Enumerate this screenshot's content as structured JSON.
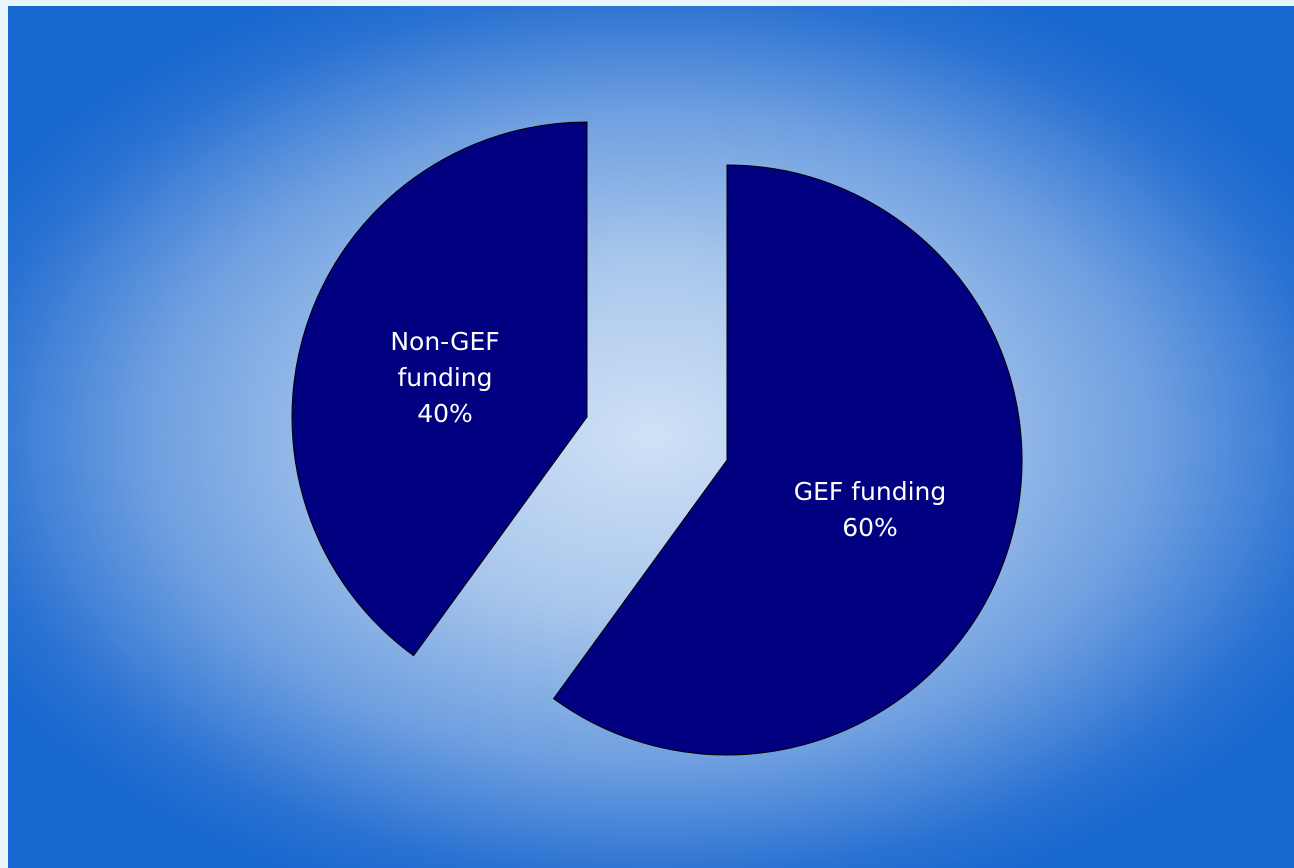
{
  "chart_data": {
    "type": "pie",
    "categories": [
      "GEF funding",
      "Non-GEF funding"
    ],
    "values": [
      60,
      40
    ],
    "value_labels": [
      "60%",
      "40%"
    ],
    "color": "#000080"
  }
}
